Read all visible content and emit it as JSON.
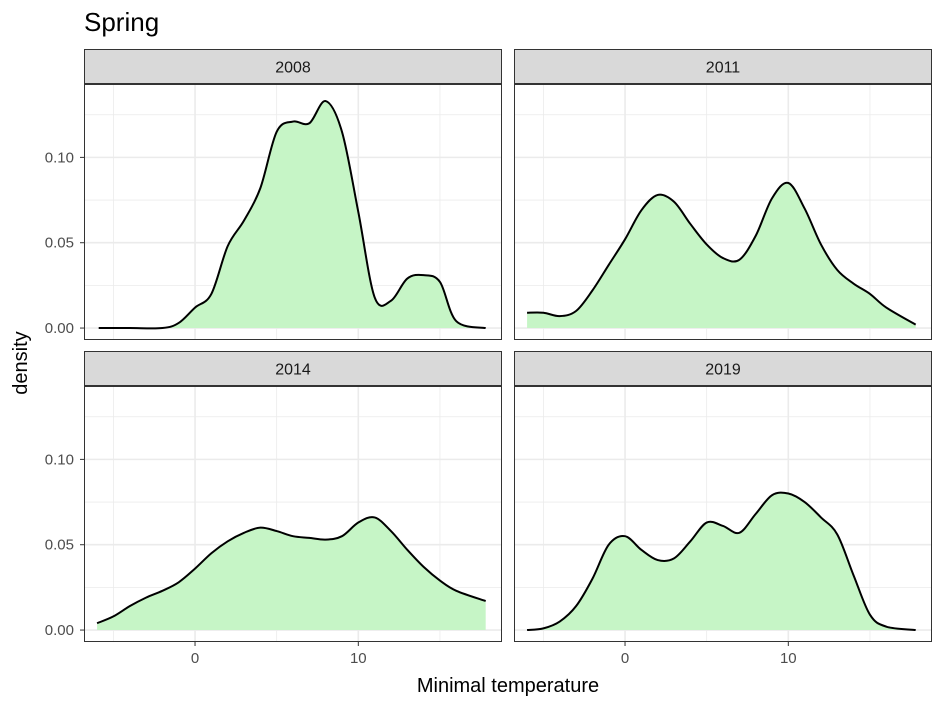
{
  "chart_data": {
    "type": "area",
    "title": "Spring",
    "xlabel": "Minimal temperature",
    "ylabel": "density",
    "xlim": [
      -6.8,
      18.8
    ],
    "ylim": [
      -0.007,
      0.143
    ],
    "x_ticks": [
      0,
      10
    ],
    "x_tick_labels": [
      "0",
      "10"
    ],
    "y_ticks": [
      0.0,
      0.05,
      0.1
    ],
    "y_tick_labels": [
      "0.00",
      "0.05",
      "0.10"
    ],
    "grid": true,
    "colors": {
      "fill": "#c6f5c6",
      "line": "#000000",
      "strip_bg": "#d9d9d9",
      "grid": "#ebebeb"
    },
    "panels": [
      {
        "label": "2008",
        "x": [
          -5.9,
          -4,
          -2,
          -1,
          0,
          1,
          2,
          3,
          4,
          5,
          6,
          7,
          8,
          9,
          10,
          11,
          12,
          13,
          14,
          15,
          16,
          17.8
        ],
        "y": [
          0.0,
          0.0,
          0.0,
          0.003,
          0.012,
          0.02,
          0.048,
          0.063,
          0.082,
          0.115,
          0.121,
          0.12,
          0.133,
          0.115,
          0.068,
          0.018,
          0.016,
          0.029,
          0.031,
          0.027,
          0.004,
          0.0
        ]
      },
      {
        "label": "2011",
        "x": [
          -6.0,
          -5,
          -4,
          -3,
          -2,
          -1,
          0,
          1,
          2,
          3,
          4,
          5,
          6,
          7,
          8,
          9,
          10,
          11,
          12,
          13,
          14,
          15,
          16,
          17.8
        ],
        "y": [
          0.009,
          0.009,
          0.007,
          0.01,
          0.022,
          0.037,
          0.052,
          0.069,
          0.078,
          0.074,
          0.061,
          0.049,
          0.041,
          0.04,
          0.054,
          0.076,
          0.085,
          0.07,
          0.049,
          0.034,
          0.026,
          0.02,
          0.012,
          0.002
        ]
      },
      {
        "label": "2014",
        "x": [
          -6.0,
          -5,
          -4,
          -3,
          -2,
          -1,
          0,
          1,
          2,
          3,
          4,
          5,
          6,
          7,
          8,
          9,
          10,
          11,
          12,
          13,
          14,
          15,
          16,
          17.8
        ],
        "y": [
          0.004,
          0.008,
          0.014,
          0.019,
          0.023,
          0.028,
          0.036,
          0.045,
          0.052,
          0.057,
          0.06,
          0.058,
          0.055,
          0.054,
          0.053,
          0.055,
          0.063,
          0.066,
          0.058,
          0.047,
          0.037,
          0.029,
          0.023,
          0.017
        ]
      },
      {
        "label": "2019",
        "x": [
          -6.0,
          -5,
          -4,
          -3,
          -2,
          -1,
          0,
          1,
          2,
          3,
          4,
          5,
          6,
          7,
          8,
          9,
          10,
          11,
          12,
          13,
          14,
          15,
          16,
          17.8
        ],
        "y": [
          0.0,
          0.001,
          0.005,
          0.014,
          0.03,
          0.05,
          0.055,
          0.047,
          0.041,
          0.042,
          0.052,
          0.063,
          0.061,
          0.057,
          0.068,
          0.079,
          0.08,
          0.075,
          0.066,
          0.056,
          0.032,
          0.009,
          0.002,
          0.0
        ]
      }
    ]
  }
}
